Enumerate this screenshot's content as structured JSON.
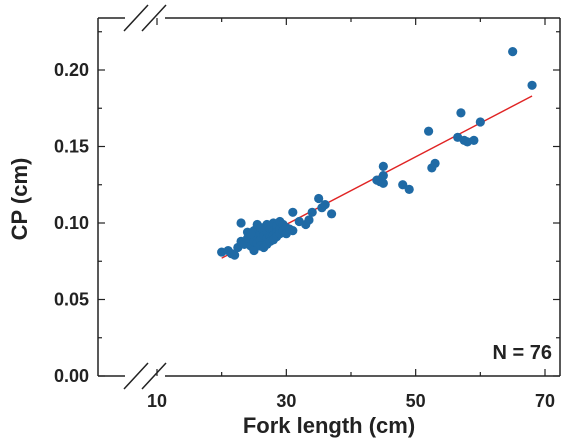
{
  "chart_data": {
    "type": "scatter",
    "xlabel": "Fork length (cm)",
    "ylabel": "CP (cm)",
    "annotation": "N = 76",
    "xlim": [
      0,
      72
    ],
    "ylim": [
      0.0,
      0.23
    ],
    "x_ticks": [
      10,
      30,
      50,
      70
    ],
    "x_tick_labels": [
      "10",
      "30",
      "50",
      "70"
    ],
    "y_ticks": [
      0.0,
      0.05,
      0.1,
      0.15,
      0.2
    ],
    "y_tick_labels": [
      "0.00",
      "0.05",
      "0.10",
      "0.15",
      "0.20"
    ],
    "axis_breaks": true,
    "grid": false,
    "colors": {
      "points": "#1f6aa5",
      "fit_line": "#e02424",
      "axes": "#222222"
    },
    "fit_line": {
      "x": [
        20,
        68
      ],
      "y": [
        0.077,
        0.183
      ]
    },
    "points": [
      [
        20.0,
        0.081
      ],
      [
        21.0,
        0.082
      ],
      [
        21.5,
        0.08
      ],
      [
        22.0,
        0.079
      ],
      [
        22.5,
        0.084
      ],
      [
        23.0,
        0.1
      ],
      [
        23.0,
        0.088
      ],
      [
        23.5,
        0.086
      ],
      [
        24.0,
        0.094
      ],
      [
        24.0,
        0.09
      ],
      [
        24.5,
        0.085
      ],
      [
        24.5,
        0.092
      ],
      [
        25.0,
        0.088
      ],
      [
        25.0,
        0.095
      ],
      [
        25.0,
        0.082
      ],
      [
        25.5,
        0.099
      ],
      [
        25.5,
        0.091
      ],
      [
        25.5,
        0.087
      ],
      [
        26.0,
        0.093
      ],
      [
        26.0,
        0.089
      ],
      [
        26.0,
        0.085
      ],
      [
        26.5,
        0.097
      ],
      [
        26.5,
        0.092
      ],
      [
        26.5,
        0.084
      ],
      [
        27.0,
        0.099
      ],
      [
        27.0,
        0.094
      ],
      [
        27.0,
        0.09
      ],
      [
        27.0,
        0.086
      ],
      [
        27.5,
        0.096
      ],
      [
        27.5,
        0.091
      ],
      [
        27.5,
        0.088
      ],
      [
        28.0,
        0.1
      ],
      [
        28.0,
        0.095
      ],
      [
        28.0,
        0.092
      ],
      [
        28.0,
        0.089
      ],
      [
        28.5,
        0.098
      ],
      [
        28.5,
        0.094
      ],
      [
        28.5,
        0.091
      ],
      [
        29.0,
        0.101
      ],
      [
        29.0,
        0.096
      ],
      [
        29.0,
        0.093
      ],
      [
        29.5,
        0.099
      ],
      [
        29.5,
        0.095
      ],
      [
        30.0,
        0.097
      ],
      [
        30.0,
        0.093
      ],
      [
        30.5,
        0.096
      ],
      [
        31.0,
        0.107
      ],
      [
        31.0,
        0.095
      ],
      [
        32.0,
        0.101
      ],
      [
        33.0,
        0.099
      ],
      [
        33.5,
        0.102
      ],
      [
        34.0,
        0.107
      ],
      [
        35.0,
        0.116
      ],
      [
        35.5,
        0.11
      ],
      [
        36.0,
        0.112
      ],
      [
        37.0,
        0.106
      ],
      [
        44.0,
        0.128
      ],
      [
        44.5,
        0.127
      ],
      [
        45.0,
        0.137
      ],
      [
        45.0,
        0.126
      ],
      [
        45.0,
        0.131
      ],
      [
        48.0,
        0.125
      ],
      [
        49.0,
        0.122
      ],
      [
        52.0,
        0.16
      ],
      [
        52.5,
        0.136
      ],
      [
        53.0,
        0.139
      ],
      [
        56.5,
        0.156
      ],
      [
        57.0,
        0.172
      ],
      [
        57.5,
        0.154
      ],
      [
        58.0,
        0.153
      ],
      [
        59.0,
        0.154
      ],
      [
        60.0,
        0.166
      ],
      [
        65.0,
        0.212
      ],
      [
        68.0,
        0.19
      ],
      [
        24.5,
        0.093
      ],
      [
        26.0,
        0.097
      ]
    ]
  }
}
